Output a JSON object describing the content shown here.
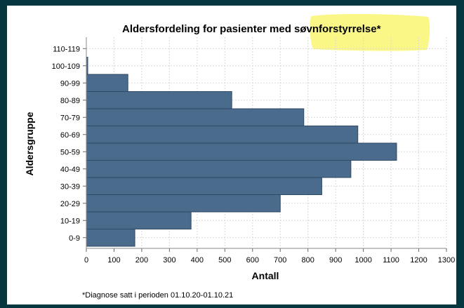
{
  "chart_data": {
    "type": "bar",
    "orientation": "horizontal",
    "title": "Aldersfordeling for pasienter med søvnforstyrrelse*",
    "title_highlight": "søvnforstyrrelse*",
    "xlabel": "Antall",
    "ylabel": "Aldersgruppe",
    "categories": [
      "0-9",
      "10-19",
      "20-29",
      "30-39",
      "40-49",
      "50-59",
      "60-69",
      "70-79",
      "80-89",
      "90-99",
      "100-109",
      "110-119"
    ],
    "values": [
      175,
      378,
      700,
      850,
      955,
      1120,
      980,
      785,
      525,
      150,
      5,
      0
    ],
    "xlim": [
      0,
      1300
    ],
    "xticks": [
      "0",
      "100",
      "200",
      "300",
      "400",
      "500",
      "600",
      "700",
      "800",
      "900",
      "1000",
      "1100",
      "1200",
      "1300"
    ],
    "grid": true,
    "legend": "none",
    "footnote": "*Diagnose satt i perioden 01.10.20-01.10.21",
    "colors": {
      "bar": "#4a6b8b",
      "bar_edge": "#2e4a66",
      "highlight": "#fbf67a",
      "background": "#06373e"
    }
  }
}
